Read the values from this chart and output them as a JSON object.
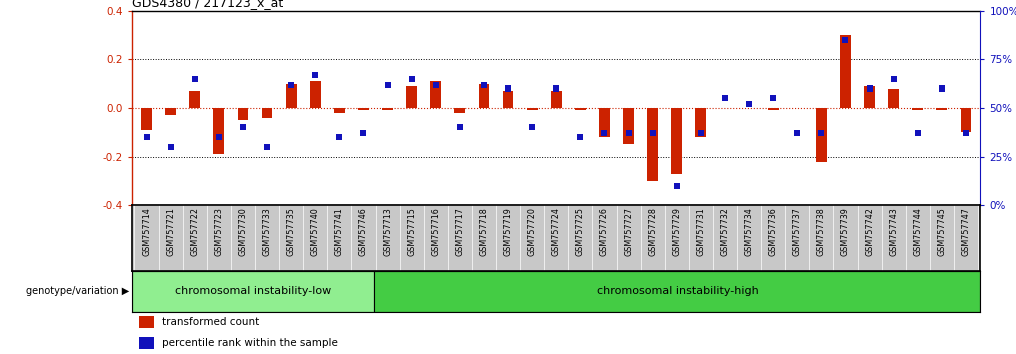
{
  "title": "GDS4380 / 217123_x_at",
  "samples": [
    "GSM757714",
    "GSM757721",
    "GSM757722",
    "GSM757723",
    "GSM757730",
    "GSM757733",
    "GSM757735",
    "GSM757740",
    "GSM757741",
    "GSM757746",
    "GSM757713",
    "GSM757715",
    "GSM757716",
    "GSM757717",
    "GSM757718",
    "GSM757719",
    "GSM757720",
    "GSM757724",
    "GSM757725",
    "GSM757726",
    "GSM757727",
    "GSM757728",
    "GSM757729",
    "GSM757731",
    "GSM757732",
    "GSM757734",
    "GSM757736",
    "GSM757737",
    "GSM757738",
    "GSM757739",
    "GSM757742",
    "GSM757743",
    "GSM757744",
    "GSM757745",
    "GSM757747"
  ],
  "red_values": [
    -0.09,
    -0.03,
    0.07,
    -0.19,
    -0.05,
    -0.04,
    0.1,
    0.11,
    -0.02,
    -0.01,
    -0.01,
    0.09,
    0.11,
    -0.02,
    0.1,
    0.07,
    -0.01,
    0.07,
    -0.01,
    -0.12,
    -0.15,
    -0.3,
    -0.27,
    -0.12,
    0.0,
    0.0,
    -0.01,
    0.0,
    -0.22,
    0.3,
    0.09,
    0.08,
    -0.01,
    -0.01,
    -0.1
  ],
  "blue_pct": [
    35,
    30,
    65,
    35,
    40,
    30,
    62,
    67,
    35,
    37,
    62,
    65,
    62,
    40,
    62,
    60,
    40,
    60,
    35,
    37,
    37,
    37,
    10,
    37,
    55,
    52,
    55,
    37,
    37,
    85,
    60,
    65,
    37,
    60,
    37
  ],
  "group1_label": "chromosomal instability-low",
  "group1_count": 10,
  "group2_label": "chromosomal instability-high",
  "group2_count": 25,
  "genotype_label": "genotype/variation",
  "legend_red": "transformed count",
  "legend_blue": "percentile rank within the sample",
  "ylim": [
    -0.4,
    0.4
  ],
  "yticks_red": [
    -0.4,
    -0.2,
    0.0,
    0.2,
    0.4
  ],
  "yticks_blue": [
    0,
    25,
    50,
    75,
    100
  ],
  "red_color": "#CC2200",
  "blue_color": "#1111BB",
  "bg_color": "#C8C8C8",
  "group1_color": "#90EE90",
  "group2_color": "#44CC44",
  "bar_width": 0.45
}
